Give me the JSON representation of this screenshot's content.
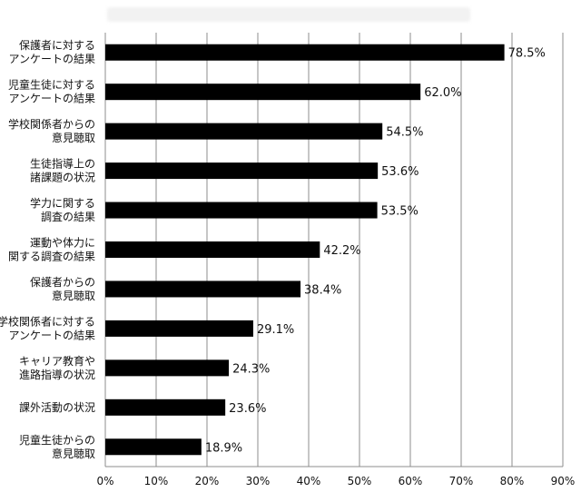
{
  "chart_data": {
    "type": "bar",
    "orientation": "horizontal",
    "categories": [
      [
        "保護者に対する",
        "アンケートの結果"
      ],
      [
        "児童生徒に対する",
        "アンケートの結果"
      ],
      [
        "学校関係者からの",
        "意見聴取"
      ],
      [
        "生徒指導上の",
        "諸課題の状況"
      ],
      [
        "学力に関する",
        "調査の結果"
      ],
      [
        "運動や体力に",
        "関する調査の結果"
      ],
      [
        "保護者からの",
        "意見聴取"
      ],
      [
        "学校関係者に対する",
        "アンケートの結果"
      ],
      [
        "キャリア教育や",
        "進路指導の状況"
      ],
      [
        "課外活動の状況"
      ],
      [
        "児童生徒からの",
        "意見聴取"
      ]
    ],
    "values": [
      78.5,
      62.0,
      54.5,
      53.6,
      53.5,
      42.2,
      38.4,
      29.1,
      24.3,
      23.6,
      18.9
    ],
    "value_labels": [
      "78.5%",
      "62.0%",
      "54.5%",
      "53.6%",
      "53.5%",
      "42.2%",
      "38.4%",
      "29.1%",
      "24.3%",
      "23.6%",
      "18.9%"
    ],
    "x_ticks": [
      0,
      10,
      20,
      30,
      40,
      50,
      60,
      70,
      80,
      90
    ],
    "x_tick_labels": [
      "0%",
      "10%",
      "20%",
      "30%",
      "40%",
      "50%",
      "60%",
      "70%",
      "80%",
      "90%"
    ],
    "xlim": [
      0,
      90
    ],
    "grid": true,
    "bar_color": "#000000",
    "grid_color": "#8c8c8c",
    "title": "",
    "xlabel": "",
    "ylabel": ""
  }
}
